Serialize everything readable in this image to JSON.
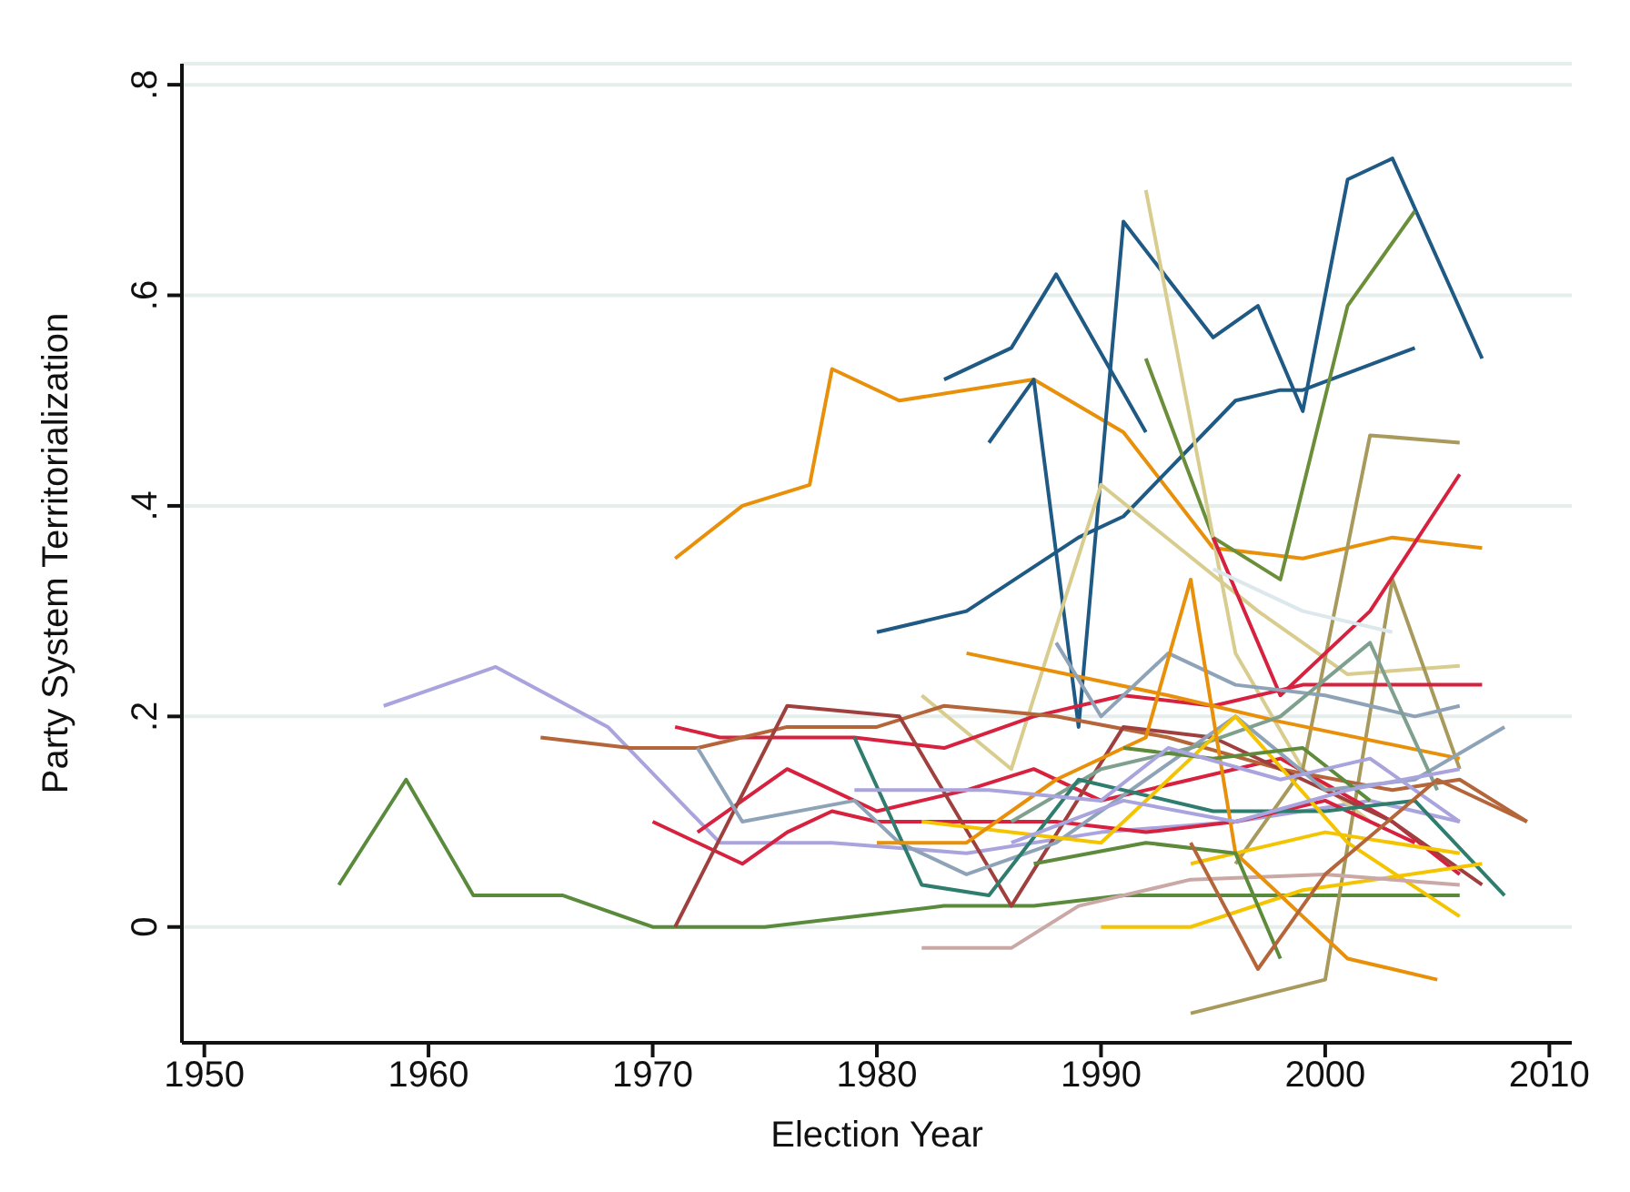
{
  "chart_data": {
    "type": "line",
    "xlabel": "Election Year",
    "ylabel": "Party System Territorialization",
    "xlim": [
      1949,
      2011
    ],
    "ylim": [
      -0.11,
      0.82
    ],
    "xticks": [
      1950,
      1960,
      1970,
      1980,
      1990,
      2000,
      2010
    ],
    "yticks": [
      0,
      {
        "value": 0.2,
        "label": ".2"
      },
      {
        "value": 0.4,
        "label": ".4"
      },
      {
        "value": 0.6,
        "label": ".6"
      },
      {
        "value": 0.8,
        "label": ".8"
      }
    ],
    "grid": "y",
    "marker": "none",
    "series": [
      {
        "color": "#5a8a3c",
        "x": [
          1956,
          1959,
          1962,
          1966,
          1970,
          1975,
          1979,
          1983,
          1987,
          1991,
          1995,
          1999,
          2003,
          2006
        ],
        "values": [
          0.04,
          0.14,
          0.03,
          0.03,
          0,
          0,
          0.01,
          0.02,
          0.02,
          0.03,
          0.03,
          0.03,
          0.03,
          0.03
        ]
      },
      {
        "color": "#a9a3de",
        "x": [
          1958,
          1963,
          1968,
          1973,
          1978,
          1984,
          1990,
          1996,
          2002,
          2006
        ],
        "values": [
          0.21,
          0.247,
          0.19,
          0.08,
          0.08,
          0.07,
          0.09,
          0.1,
          0.12,
          0.1
        ]
      },
      {
        "color": "#e8900a",
        "x": [
          1971,
          1974,
          1977,
          1978,
          1981,
          1987,
          1991,
          1995,
          1999,
          2003,
          2007
        ],
        "values": [
          0.35,
          0.4,
          0.42,
          0.53,
          0.5,
          0.52,
          0.47,
          0.36,
          0.35,
          0.37,
          0.36
        ]
      },
      {
        "color": "#1f5a85",
        "x": [
          1983,
          1986,
          1988,
          1992
        ],
        "values": [
          0.52,
          0.55,
          0.62,
          0.47
        ]
      },
      {
        "color": "#1f5a85",
        "x": [
          1985,
          1987,
          1989,
          1991,
          1995,
          1997,
          1999,
          2001,
          2003,
          2007
        ],
        "values": [
          0.46,
          0.52,
          0.19,
          0.67,
          0.56,
          0.59,
          0.49,
          0.71,
          0.73,
          0.54
        ]
      },
      {
        "color": "#1f5a85",
        "x": [
          1980,
          1984,
          1989,
          1991,
          1996,
          1998,
          1999,
          2004
        ],
        "values": [
          0.28,
          0.3,
          0.37,
          0.39,
          0.5,
          0.51,
          0.51,
          0.55
        ]
      },
      {
        "color": "#6b8e3a",
        "x": [
          1992,
          1995,
          1998,
          2001,
          2004
        ],
        "values": [
          0.54,
          0.37,
          0.33,
          0.59,
          0.68
        ]
      },
      {
        "color": "#d8cc8e",
        "x": [
          1992,
          1996,
          1999,
          2002
        ],
        "values": [
          0.7,
          0.26,
          0.15,
          0.1
        ]
      },
      {
        "color": "#d8cc8e",
        "x": [
          1982,
          1986,
          1990,
          1997,
          2001,
          2006
        ],
        "values": [
          0.22,
          0.15,
          0.42,
          0.3,
          0.24,
          0.248
        ]
      },
      {
        "color": "#a89a5c",
        "x": [
          1996,
          1999,
          2002,
          2006
        ],
        "values": [
          0.06,
          0.15,
          0.467,
          0.46
        ]
      },
      {
        "color": "#a89a5c",
        "x": [
          1994,
          2000,
          2003,
          2006
        ],
        "values": [
          -0.082,
          -0.05,
          0.33,
          0.15
        ]
      },
      {
        "color": "#d6213f",
        "x": [
          1995,
          1998,
          2002,
          2006
        ],
        "values": [
          0.37,
          0.22,
          0.3,
          0.43
        ]
      },
      {
        "color": "#d6213f",
        "x": [
          1971,
          1973,
          1979,
          1983,
          1987,
          1991,
          1995,
          1999,
          2003,
          2007
        ],
        "values": [
          0.19,
          0.18,
          0.18,
          0.17,
          0.2,
          0.22,
          0.21,
          0.23,
          0.23,
          0.23
        ]
      },
      {
        "color": "#e8900a",
        "x": [
          1984,
          1993,
          1998,
          2006
        ],
        "values": [
          0.26,
          0.22,
          0.195,
          0.16
        ]
      },
      {
        "color": "#d6213f",
        "x": [
          1972,
          1976,
          1980,
          1984,
          1987,
          1990,
          1994,
          1998,
          2003,
          2006
        ],
        "values": [
          0.09,
          0.15,
          0.11,
          0.13,
          0.15,
          0.12,
          0.14,
          0.16,
          0.1,
          0.05
        ]
      },
      {
        "color": "#d6213f",
        "x": [
          1970,
          1974,
          1976,
          1978,
          1980,
          1984,
          1988,
          1992,
          1996,
          2000,
          2004
        ],
        "values": [
          0.1,
          0.06,
          0.09,
          0.11,
          0.1,
          0.1,
          0.1,
          0.09,
          0.1,
          0.12,
          0.08
        ]
      },
      {
        "color": "#b5653a",
        "x": [
          1965,
          1969,
          1972,
          1976,
          1980,
          1983,
          1988,
          1993,
          1998,
          2003,
          2006,
          2009
        ],
        "values": [
          0.18,
          0.17,
          0.17,
          0.19,
          0.19,
          0.21,
          0.2,
          0.18,
          0.15,
          0.13,
          0.14,
          0.1
        ]
      },
      {
        "color": "#a0403e",
        "x": [
          1971,
          1976,
          1981,
          1986,
          1991,
          1995,
          1999,
          2003,
          2007
        ],
        "values": [
          0,
          0.21,
          0.2,
          0.02,
          0.19,
          0.18,
          0.14,
          0.1,
          0.04
        ]
      },
      {
        "color": "#8fa3b8",
        "x": [
          1972,
          1974,
          1979,
          1981,
          1984,
          1988,
          1992,
          1996,
          2000,
          2004,
          2008
        ],
        "values": [
          0.17,
          0.1,
          0.12,
          0.08,
          0.05,
          0.08,
          0.14,
          0.2,
          0.13,
          0.14,
          0.19
        ]
      },
      {
        "color": "#8fa3b8",
        "x": [
          1988,
          1990,
          1993,
          1996,
          2000,
          2004,
          2006
        ],
        "values": [
          0.27,
          0.2,
          0.26,
          0.23,
          0.22,
          0.2,
          0.21
        ]
      },
      {
        "color": "#7fa08e",
        "x": [
          1986,
          1990,
          1994,
          1998,
          2002,
          2005
        ],
        "values": [
          0.1,
          0.15,
          0.17,
          0.2,
          0.27,
          0.13
        ]
      },
      {
        "color": "#2e7d6e",
        "x": [
          1979,
          1982,
          1985,
          1989,
          1995,
          2000,
          2004,
          2008
        ],
        "values": [
          0.18,
          0.04,
          0.03,
          0.14,
          0.11,
          0.11,
          0.12,
          0.03
        ]
      },
      {
        "color": "#f5c400",
        "x": [
          1982,
          1990,
          1996,
          2001,
          2006
        ],
        "values": [
          0.1,
          0.08,
          0.2,
          0.08,
          0.01
        ]
      },
      {
        "color": "#f5c400",
        "x": [
          1990,
          1994,
          1999,
          2007
        ],
        "values": [
          0,
          0,
          0.035,
          0.06
        ]
      },
      {
        "color": "#f5c400",
        "x": [
          1994,
          2000,
          2006
        ],
        "values": [
          0.06,
          0.09,
          0.07
        ]
      },
      {
        "color": "#c9a8a6",
        "x": [
          1982,
          1986,
          1989,
          1994,
          2000,
          2006
        ],
        "values": [
          -0.02,
          -0.02,
          0.02,
          0.045,
          0.05,
          0.04
        ]
      },
      {
        "color": "#dde8ec",
        "x": [
          1995,
          1999,
          2003
        ],
        "values": [
          0.34,
          0.3,
          0.28
        ]
      },
      {
        "color": "#e8900a",
        "x": [
          1980,
          1984,
          1988,
          1992,
          1994,
          1996,
          2001,
          2005
        ],
        "values": [
          0.08,
          0.08,
          0.14,
          0.18,
          0.33,
          0.07,
          -0.03,
          -0.05
        ]
      },
      {
        "color": "#5e8a3c",
        "x": [
          1991,
          1995,
          1999,
          2002
        ],
        "values": [
          0.17,
          0.16,
          0.17,
          0.12
        ]
      },
      {
        "color": "#5e8a3c",
        "x": [
          1987,
          1992,
          1996,
          1998
        ],
        "values": [
          0.06,
          0.08,
          0.07,
          -0.03
        ]
      },
      {
        "color": "#a9a3de",
        "x": [
          1979,
          1985,
          1990,
          1993,
          1998,
          2002,
          2006
        ],
        "values": [
          0.13,
          0.13,
          0.12,
          0.17,
          0.14,
          0.16,
          0.1
        ]
      },
      {
        "color": "#a9a3de",
        "x": [
          1986,
          1991,
          1996,
          2001,
          2006
        ],
        "values": [
          0.08,
          0.12,
          0.1,
          0.13,
          0.15
        ]
      },
      {
        "color": "#b5653a",
        "x": [
          1994,
          1997,
          2000,
          2005,
          2009
        ],
        "values": [
          0.08,
          -0.04,
          0.05,
          0.14,
          0.1
        ]
      }
    ]
  }
}
